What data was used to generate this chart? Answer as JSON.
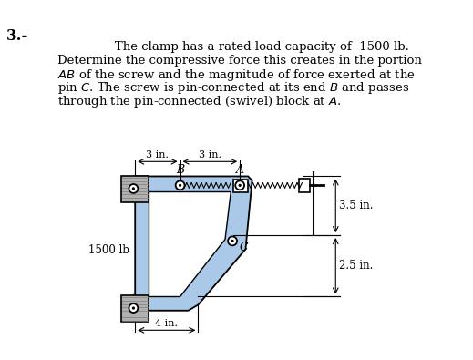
{
  "bg_color": "#ffffff",
  "clamp_fill": "#aac8e8",
  "clamp_edge": "#000000",
  "block_fill": "#b0b0b0",
  "block_edge": "#000000",
  "screw_color": "#000000",
  "text_color": "#000000",
  "title": "3.-",
  "problem_lines": [
    "The clamp has a rated load capacity of  1500 lb.",
    "Determine the compressive force this creates in the portion",
    "AB of the screw and the magnitude of force exerted at the",
    "pin C. The screw is pin-connected at its end B and passes",
    "through the pin-connected (swivel) block at A."
  ],
  "dim_3in_left": "3 in.",
  "dim_3in_right": "3 in.",
  "dim_4in": "4 in.",
  "dim_35in": "3.5 in.",
  "dim_25in": "2.5 in.",
  "label_B": "B",
  "label_A": "A",
  "label_C": "C",
  "force_label": "1500 lb"
}
